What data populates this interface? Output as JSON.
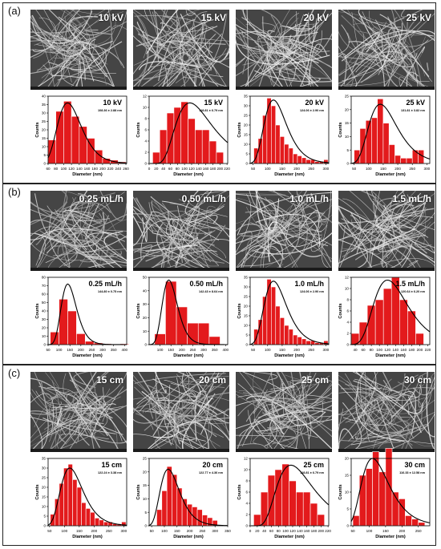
{
  "panels": [
    {
      "label": "(a)",
      "sem_labels": [
        "10 kV",
        "15 kV",
        "20 kV",
        "25 kV"
      ]
    },
    {
      "label": "(b)",
      "sem_labels": [
        "0.25 mL/h",
        "0.50 mL/h",
        "1.0 mL/h",
        "1.5 mL/h"
      ]
    },
    {
      "label": "(c)",
      "sem_labels": [
        "15 cm",
        "20 cm",
        "25 cm",
        "30 cm"
      ]
    }
  ],
  "colors": {
    "bar": "#e31a1c",
    "bar_edge": "#ffffff",
    "fit": "#000000",
    "frame": "#222222"
  },
  "chart_data": [
    {
      "type": "bar",
      "title": "10 kV",
      "subtitle": "108.36 ± 2.88 nm",
      "xlabel": "Diameter (nm)",
      "ylabel": "Counts",
      "x_ticks": [
        60,
        80,
        100,
        120,
        140,
        160,
        180,
        200,
        220,
        240,
        260
      ],
      "y_ticks": [
        0,
        5,
        10,
        15,
        20,
        25,
        30,
        35,
        40
      ],
      "xlim": [
        60,
        262
      ],
      "ylim": [
        0,
        40
      ],
      "bin_width": 20,
      "bins": [
        70,
        90,
        110,
        130,
        150,
        170,
        190,
        210,
        230,
        250
      ],
      "values": [
        14,
        31,
        37,
        28,
        22,
        15,
        8,
        3,
        2,
        1
      ],
      "fit": {
        "peak": 110,
        "amp": 36,
        "sigma": 0.28
      }
    },
    {
      "type": "bar",
      "title": "15 kV",
      "subtitle": "118.81 ± 6.79 nm",
      "xlabel": "Diameter (nm)",
      "ylabel": "Counts",
      "x_ticks": [
        0,
        20,
        40,
        60,
        80,
        100,
        120,
        140,
        160,
        180,
        200,
        220
      ],
      "y_ticks": [
        0,
        2,
        4,
        6,
        8,
        10,
        12
      ],
      "xlim": [
        0,
        222
      ],
      "ylim": [
        0,
        12
      ],
      "bin_width": 20,
      "bins": [
        20,
        40,
        60,
        80,
        100,
        120,
        140,
        160,
        180,
        200
      ],
      "values": [
        2,
        6,
        9,
        10,
        11,
        8,
        6,
        6,
        4,
        2
      ],
      "fit": {
        "peak": 115,
        "amp": 10.8,
        "sigma": 0.45
      }
    },
    {
      "type": "bar",
      "title": "20 kV",
      "subtitle": "124.06 ± 2.90 nm",
      "xlabel": "Diameter (nm)",
      "ylabel": "Counts",
      "x_ticks": [
        50,
        100,
        150,
        200,
        250,
        300
      ],
      "y_ticks": [
        0,
        5,
        10,
        15,
        20,
        25,
        30,
        35
      ],
      "xlim": [
        40,
        310
      ],
      "ylim": [
        0,
        35
      ],
      "bin_width": 15,
      "bins": [
        60,
        75,
        90,
        105,
        120,
        135,
        150,
        165,
        180,
        195,
        210,
        225,
        240,
        255,
        270,
        285,
        300
      ],
      "values": [
        8,
        13,
        25,
        34,
        30,
        20,
        14,
        10,
        8,
        5,
        4,
        3,
        2,
        2,
        1,
        1,
        2
      ],
      "fit": {
        "peak": 120,
        "amp": 33,
        "sigma": 0.32
      }
    },
    {
      "type": "bar",
      "title": "25 kV",
      "subtitle": "131.81 ± 3.82 nm",
      "xlabel": "Diameter (nm)",
      "ylabel": "Counts",
      "x_ticks": [
        50,
        100,
        150,
        200,
        250,
        300
      ],
      "y_ticks": [
        0,
        5,
        10,
        15,
        20,
        25
      ],
      "xlim": [
        40,
        310
      ],
      "ylim": [
        0,
        25
      ],
      "bin_width": 20,
      "bins": [
        60,
        80,
        100,
        120,
        140,
        160,
        180,
        200,
        220,
        240,
        260,
        280
      ],
      "values": [
        5,
        13,
        16,
        17,
        24,
        15,
        7,
        3,
        2,
        2,
        5,
        5
      ],
      "fit": {
        "peak": 140,
        "amp": 22,
        "sigma": 0.35
      }
    },
    {
      "type": "bar",
      "title": "0.25 mL/h",
      "subtitle": "144.80 ± 0.75 nm",
      "xlabel": "Diameter (nm)",
      "ylabel": "Counts",
      "x_ticks": [
        50,
        100,
        150,
        200,
        250,
        300,
        350,
        400
      ],
      "y_ticks": [
        0,
        10,
        20,
        30,
        40,
        50,
        60,
        70,
        80
      ],
      "xlim": [
        50,
        410
      ],
      "ylim": [
        0,
        80
      ],
      "bin_width": 40,
      "bins": [
        80,
        120,
        160,
        200,
        240,
        280,
        320,
        360,
        400
      ],
      "values": [
        15,
        54,
        40,
        13,
        4,
        2,
        1,
        0,
        1
      ],
      "fit": {
        "peak": 140,
        "amp": 72,
        "sigma": 0.25
      }
    },
    {
      "type": "bar",
      "title": "0.50 mL/h",
      "subtitle": "142.43 ± 8.64 nm",
      "xlabel": "Diameter (nm)",
      "ylabel": "Counts",
      "x_ticks": [
        100,
        150,
        200,
        250,
        300,
        350,
        400
      ],
      "y_ticks": [
        0,
        10,
        20,
        30,
        40,
        50
      ],
      "xlim": [
        50,
        410
      ],
      "ylim": [
        0,
        50
      ],
      "bin_width": 50,
      "bins": [
        100,
        150,
        200,
        250,
        300,
        350
      ],
      "values": [
        8,
        47,
        28,
        16,
        16,
        6
      ],
      "fit": {
        "peak": 140,
        "amp": 48,
        "sigma": 0.25
      }
    },
    {
      "type": "bar",
      "title": "1.0 mL/h",
      "subtitle": "124.06 ± 2.90 nm",
      "xlabel": "Diameter (nm)",
      "ylabel": "Counts",
      "x_ticks": [
        50,
        100,
        150,
        200,
        250,
        300
      ],
      "y_ticks": [
        0,
        5,
        10,
        15,
        20,
        25,
        30,
        35
      ],
      "xlim": [
        40,
        310
      ],
      "ylim": [
        0,
        35
      ],
      "bin_width": 15,
      "bins": [
        60,
        75,
        90,
        105,
        120,
        135,
        150,
        165,
        180,
        195,
        210,
        225,
        240,
        255,
        270,
        285,
        300
      ],
      "values": [
        8,
        13,
        25,
        34,
        30,
        20,
        14,
        10,
        8,
        5,
        4,
        3,
        2,
        2,
        1,
        1,
        2
      ],
      "fit": {
        "peak": 120,
        "amp": 33,
        "sigma": 0.32
      }
    },
    {
      "type": "bar",
      "title": "1.5 mL/h",
      "subtitle": "120.64 ± 6.20 nm",
      "xlabel": "Diameter (nm)",
      "ylabel": "Counts",
      "x_ticks": [
        40,
        60,
        80,
        100,
        120,
        140,
        160,
        180,
        200,
        220
      ],
      "y_ticks": [
        0,
        2,
        4,
        6,
        8,
        10,
        12
      ],
      "xlim": [
        30,
        225
      ],
      "ylim": [
        0,
        12
      ],
      "bin_width": 20,
      "bins": [
        40,
        60,
        80,
        100,
        120,
        140,
        160,
        180,
        200
      ],
      "values": [
        2,
        4,
        7,
        8,
        10,
        12,
        8,
        6,
        2
      ],
      "fit": {
        "peak": 120,
        "amp": 11.5,
        "sigma": 0.35
      }
    },
    {
      "type": "bar",
      "title": "15 cm",
      "subtitle": "122.24 ± 3.38 nm",
      "xlabel": "Diameter (nm)",
      "ylabel": "Counts",
      "x_ticks": [
        50,
        100,
        150,
        200,
        250,
        300
      ],
      "y_ticks": [
        0,
        5,
        10,
        15,
        20,
        25,
        30,
        35
      ],
      "xlim": [
        45,
        310
      ],
      "ylim": [
        0,
        35
      ],
      "bin_width": 15,
      "bins": [
        60,
        75,
        90,
        105,
        120,
        135,
        150,
        165,
        180,
        195,
        210,
        225,
        240,
        255,
        270,
        285,
        300
      ],
      "values": [
        6,
        14,
        22,
        30,
        32,
        24,
        20,
        12,
        9,
        7,
        4,
        3,
        2,
        2,
        1,
        1,
        2
      ],
      "fit": {
        "peak": 118,
        "amp": 30,
        "sigma": 0.32
      }
    },
    {
      "type": "bar",
      "title": "20 cm",
      "subtitle": "122.77 ± 4.36 nm",
      "xlabel": "Diameter (nm)",
      "ylabel": "Counts",
      "x_ticks": [
        50,
        100,
        150,
        200,
        250,
        300,
        350
      ],
      "y_ticks": [
        0,
        5,
        10,
        15,
        20,
        25
      ],
      "xlim": [
        40,
        350
      ],
      "ylim": [
        0,
        25
      ],
      "bin_width": 20,
      "bins": [
        80,
        100,
        120,
        140,
        160,
        180,
        200,
        220,
        240,
        260,
        280,
        300
      ],
      "values": [
        6,
        13,
        22,
        19,
        14,
        10,
        8,
        7,
        6,
        4,
        3,
        2
      ],
      "fit": {
        "peak": 115,
        "amp": 21,
        "sigma": 0.33
      }
    },
    {
      "type": "bar",
      "title": "25 cm",
      "subtitle": "118.81 ± 6.79 nm",
      "xlabel": "Diameter (nm)",
      "ylabel": "Counts",
      "x_ticks": [
        0,
        20,
        40,
        60,
        80,
        100,
        120,
        140,
        160,
        180,
        200,
        220
      ],
      "y_ticks": [
        0,
        2,
        4,
        6,
        8,
        10,
        12
      ],
      "xlim": [
        0,
        222
      ],
      "ylim": [
        0,
        12
      ],
      "bin_width": 20,
      "bins": [
        20,
        40,
        60,
        80,
        100,
        120,
        140,
        160,
        180,
        200
      ],
      "values": [
        2,
        6,
        9,
        10,
        11,
        8,
        6,
        6,
        4,
        2
      ],
      "fit": {
        "peak": 115,
        "amp": 10.8,
        "sigma": 0.45
      }
    },
    {
      "type": "bar",
      "title": "30 cm",
      "subtitle": "116.33 ± 12.58 nm",
      "xlabel": "Diameter (nm)",
      "ylabel": "Counts",
      "x_ticks": [
        50,
        100,
        150,
        200,
        250
      ],
      "y_ticks": [
        0,
        5,
        10,
        15,
        20
      ],
      "xlim": [
        45,
        285
      ],
      "ylim": [
        0,
        20
      ],
      "bin_width": 20,
      "bins": [
        60,
        80,
        100,
        120,
        140,
        160,
        180,
        200,
        220,
        240,
        260
      ],
      "values": [
        3,
        15,
        17,
        22,
        16,
        23,
        10,
        8,
        3,
        2,
        1
      ],
      "fit": {
        "peak": 110,
        "amp": 20,
        "sigma": 0.38
      }
    }
  ]
}
